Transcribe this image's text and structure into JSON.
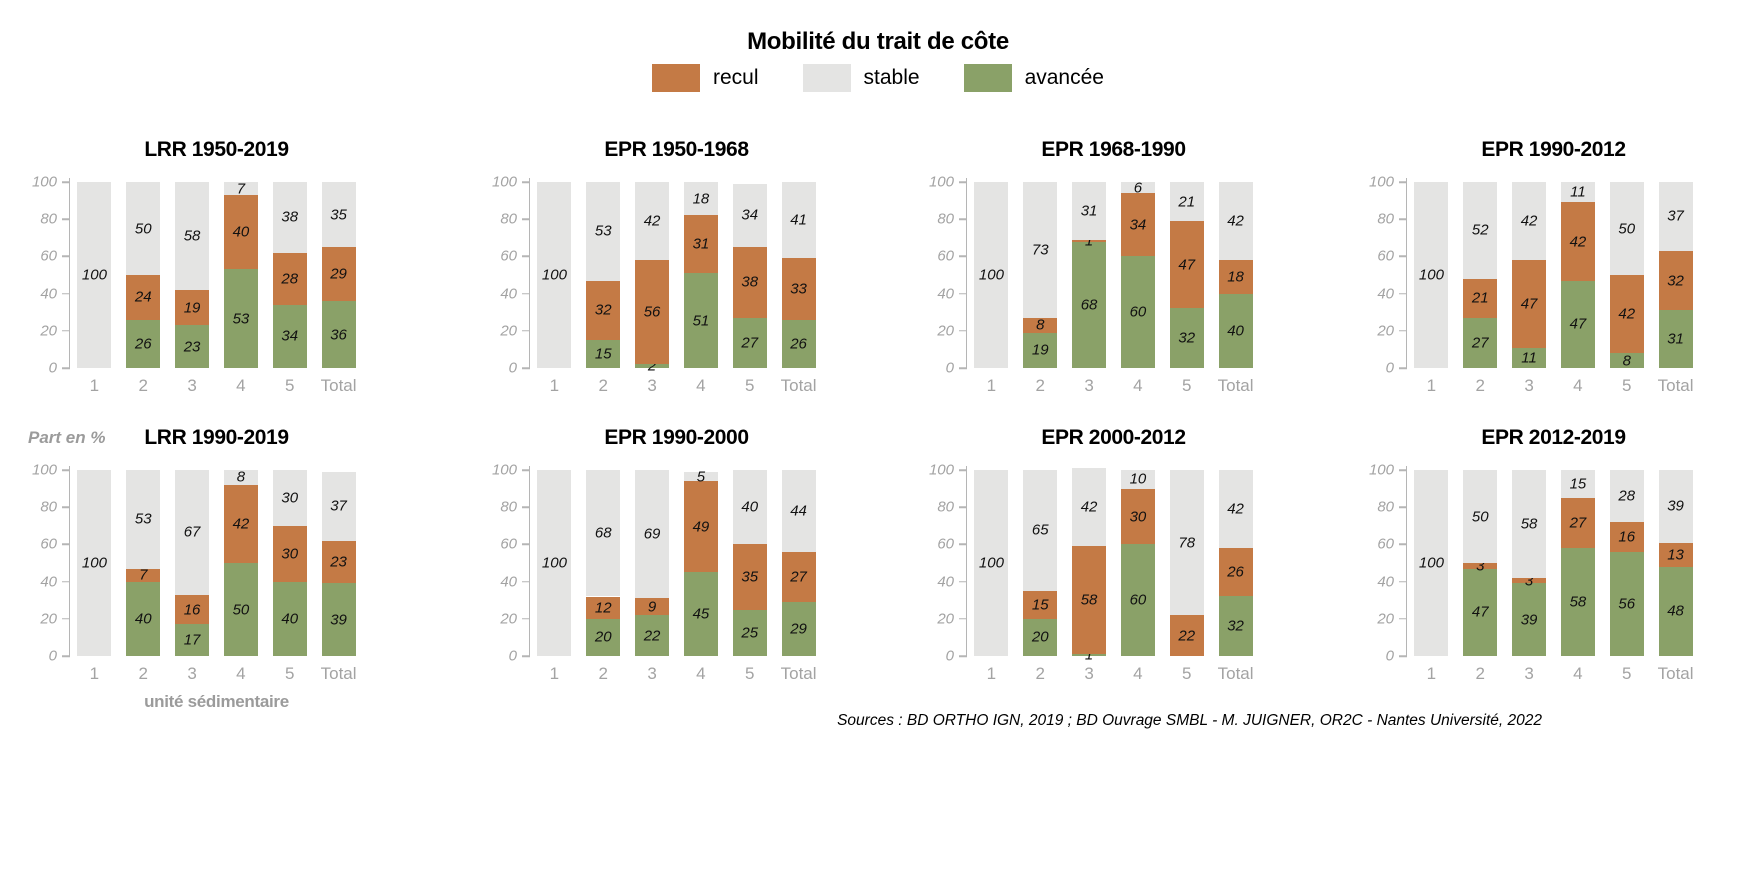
{
  "header": {
    "title": "Mobilité du trait de côte",
    "legend": [
      {
        "name": "recul",
        "label": "recul",
        "color": "#c47a45"
      },
      {
        "name": "stable",
        "label": "stable",
        "color": "#e4e4e3"
      },
      {
        "name": "avancée",
        "label": "avancée",
        "color": "#8aa168"
      }
    ]
  },
  "axis": {
    "y_ticks": [
      0,
      20,
      40,
      60,
      80,
      100
    ],
    "y_unit_label": "Part en %",
    "x_axis_label": "unité sédimentaire",
    "categories": [
      "1",
      "2",
      "3",
      "4",
      "5",
      "Total"
    ]
  },
  "source": "Sources : BD ORTHO IGN, 2019 ; BD Ouvrage SMBL - M. JUIGNER, OR2C - Nantes Université, 2022",
  "chart_data": [
    {
      "type": "bar",
      "stacked": true,
      "title": "LRR 1950-2019",
      "ylim": [
        0,
        100
      ],
      "categories": [
        "1",
        "2",
        "3",
        "4",
        "5",
        "Total"
      ],
      "series": [
        {
          "name": "avancée",
          "values": [
            0,
            26,
            23,
            53,
            34,
            36
          ]
        },
        {
          "name": "recul",
          "values": [
            0,
            24,
            19,
            40,
            28,
            29
          ]
        },
        {
          "name": "stable",
          "values": [
            100,
            50,
            58,
            7,
            38,
            35
          ]
        }
      ]
    },
    {
      "type": "bar",
      "stacked": true,
      "title": "EPR 1950-1968",
      "ylim": [
        0,
        100
      ],
      "categories": [
        "1",
        "2",
        "3",
        "4",
        "5",
        "Total"
      ],
      "series": [
        {
          "name": "avancée",
          "values": [
            0,
            15,
            2,
            51,
            27,
            26
          ]
        },
        {
          "name": "recul",
          "values": [
            0,
            32,
            56,
            31,
            38,
            33
          ]
        },
        {
          "name": "stable",
          "values": [
            100,
            53,
            42,
            18,
            34,
            41
          ]
        }
      ]
    },
    {
      "type": "bar",
      "stacked": true,
      "title": "EPR 1968-1990",
      "ylim": [
        0,
        100
      ],
      "categories": [
        "1",
        "2",
        "3",
        "4",
        "5",
        "Total"
      ],
      "series": [
        {
          "name": "avancée",
          "values": [
            0,
            19,
            68,
            60,
            32,
            40
          ]
        },
        {
          "name": "recul",
          "values": [
            0,
            8,
            1,
            34,
            47,
            18
          ]
        },
        {
          "name": "stable",
          "values": [
            100,
            73,
            31,
            6,
            21,
            42
          ]
        }
      ]
    },
    {
      "type": "bar",
      "stacked": true,
      "title": "EPR 1990-2012",
      "ylim": [
        0,
        100
      ],
      "categories": [
        "1",
        "2",
        "3",
        "4",
        "5",
        "Total"
      ],
      "series": [
        {
          "name": "avancée",
          "values": [
            0,
            27,
            11,
            47,
            8,
            31
          ]
        },
        {
          "name": "recul",
          "values": [
            0,
            21,
            47,
            42,
            42,
            32
          ]
        },
        {
          "name": "stable",
          "values": [
            100,
            52,
            42,
            11,
            50,
            37
          ]
        }
      ]
    },
    {
      "type": "bar",
      "stacked": true,
      "title": "LRR 1990-2019",
      "ylim": [
        0,
        100
      ],
      "categories": [
        "1",
        "2",
        "3",
        "4",
        "5",
        "Total"
      ],
      "series": [
        {
          "name": "avancée",
          "values": [
            0,
            40,
            17,
            50,
            40,
            39
          ]
        },
        {
          "name": "recul",
          "values": [
            0,
            7,
            16,
            42,
            30,
            23
          ]
        },
        {
          "name": "stable",
          "values": [
            100,
            53,
            67,
            8,
            30,
            37
          ]
        }
      ]
    },
    {
      "type": "bar",
      "stacked": true,
      "title": "EPR 1990-2000",
      "ylim": [
        0,
        100
      ],
      "categories": [
        "1",
        "2",
        "3",
        "4",
        "5",
        "Total"
      ],
      "series": [
        {
          "name": "avancée",
          "values": [
            0,
            20,
            22,
            45,
            25,
            29
          ]
        },
        {
          "name": "recul",
          "values": [
            0,
            12,
            9,
            49,
            35,
            27
          ]
        },
        {
          "name": "stable",
          "values": [
            100,
            68,
            69,
            5,
            40,
            44
          ]
        }
      ]
    },
    {
      "type": "bar",
      "stacked": true,
      "title": "EPR 2000-2012",
      "ylim": [
        0,
        100
      ],
      "categories": [
        "1",
        "2",
        "3",
        "4",
        "5",
        "Total"
      ],
      "series": [
        {
          "name": "avancée",
          "values": [
            0,
            20,
            1,
            60,
            0,
            32
          ]
        },
        {
          "name": "recul",
          "values": [
            0,
            15,
            58,
            30,
            22,
            26
          ]
        },
        {
          "name": "stable",
          "values": [
            100,
            65,
            42,
            10,
            78,
            42
          ]
        }
      ]
    },
    {
      "type": "bar",
      "stacked": true,
      "title": "EPR 2012-2019",
      "ylim": [
        0,
        100
      ],
      "categories": [
        "1",
        "2",
        "3",
        "4",
        "5",
        "Total"
      ],
      "series": [
        {
          "name": "avancée",
          "values": [
            0,
            47,
            39,
            58,
            56,
            48
          ]
        },
        {
          "name": "recul",
          "values": [
            0,
            3,
            3,
            27,
            16,
            13
          ]
        },
        {
          "name": "stable",
          "values": [
            100,
            50,
            58,
            15,
            28,
            39
          ]
        }
      ]
    }
  ]
}
